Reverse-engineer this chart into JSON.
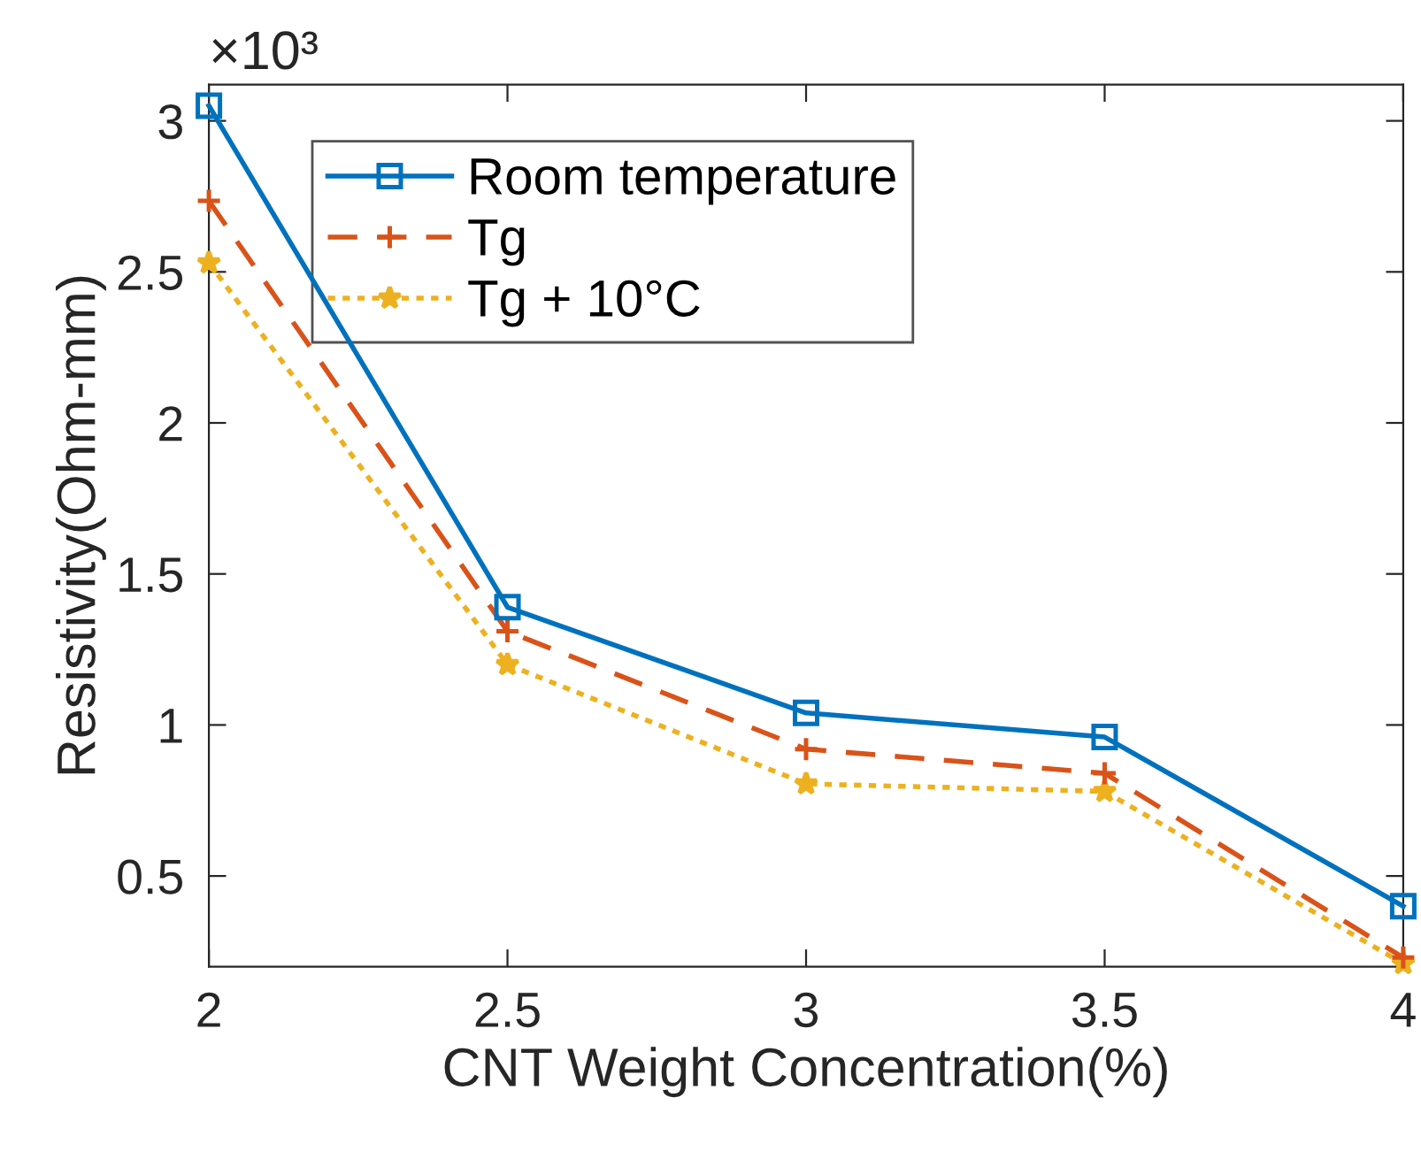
{
  "chart_data": {
    "type": "line",
    "xlabel": "CNT Weight Concentration(%)",
    "ylabel": "Resistivity(Ohm-mm)",
    "annotations": [
      "×10³"
    ],
    "x": [
      2,
      2.5,
      3,
      3.5,
      4
    ],
    "series": [
      {
        "name": "Room temperature",
        "color": "#0072bd",
        "values": [
          3.05,
          1.39,
          1.04,
          0.96,
          0.4
        ],
        "marker": "square",
        "line_style": "solid"
      },
      {
        "name": "Tg",
        "color": "#d95319",
        "values": [
          2.735,
          1.31,
          0.92,
          0.84,
          0.23
        ],
        "marker": "cross",
        "line_style": "dashed"
      },
      {
        "name": "Tg + 10°C",
        "color": "#edb120",
        "values": [
          2.53,
          1.2,
          0.805,
          0.78,
          0.21
        ],
        "marker": "star",
        "line_style": "dotted"
      }
    ],
    "xlim": [
      2,
      4
    ],
    "xticks": [
      2,
      2.5,
      3,
      3.5,
      4
    ],
    "ylim": [
      0.2,
      3.12
    ],
    "yticks": [
      0.5,
      1,
      1.5,
      2,
      2.5,
      3
    ],
    "grid": false,
    "legend": "top left"
  }
}
